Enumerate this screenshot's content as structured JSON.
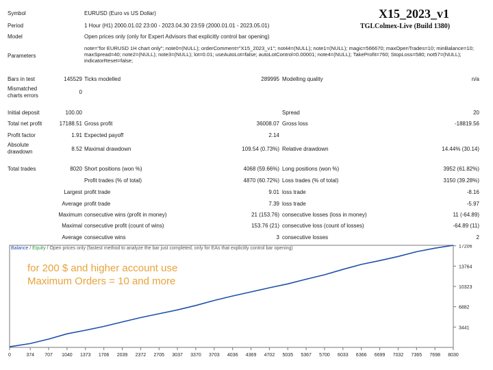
{
  "header": {
    "title": "X15_2023_v1",
    "subtitle": "TGLColmex-Live (Build 1380)"
  },
  "info": {
    "symbol_label": "Symbol",
    "symbol_value": "EURUSD (Euro vs US Dollar)",
    "period_label": "Period",
    "period_value": "1 Hour (H1) 2000.01.02 23:00 - 2023.04.30 23:59 (2000.01.01 - 2023.05.01)",
    "model_label": "Model",
    "model_value": "Open prices only (only for Expert Advisors that explicitly control bar opening)",
    "parameters_label": "Parameters",
    "parameters_value": "note=\"for EURUSD 1H chart only\"; note0=(NULL); orderComment=\"X15_2023_v1\"; not44=(NULL); note1=(NULL); magic=566670; maxOpenTrades=10; minBalance=10; maxSpread=40; note2=(NULL); note3=(NULL); lot=0.01; useAutoLot=false; autoLotControl=0.00001; note4=(NULL); TakeProfit=760; StopLoss=580; not57=(NULL); indicatorReset=false;"
  },
  "stats": {
    "bars_in_test_label": "Bars in test",
    "bars_in_test_value": "145529",
    "ticks_modelled_label": "Ticks modelled",
    "ticks_modelled_value": "289995",
    "modelling_quality_label": "Modelling quality",
    "modelling_quality_value": "n/a",
    "mismatched_label": "Mismatched charts errors",
    "mismatched_value": "0",
    "initial_deposit_label": "Initial deposit",
    "initial_deposit_value": "100.00",
    "spread_label": "Spread",
    "spread_value": "20",
    "total_net_profit_label": "Total net profit",
    "total_net_profit_value": "17188.51",
    "gross_profit_label": "Gross profit",
    "gross_profit_value": "36008.07",
    "gross_loss_label": "Gross loss",
    "gross_loss_value": "-18819.56",
    "profit_factor_label": "Profit factor",
    "profit_factor_value": "1.91",
    "expected_payoff_label": "Expected payoff",
    "expected_payoff_value": "2.14",
    "absolute_drawdown_label": "Absolute drawdown",
    "absolute_drawdown_value": "8.52",
    "maximal_drawdown_label": "Maximal drawdown",
    "maximal_drawdown_value": "109.54 (0.73%)",
    "relative_drawdown_label": "Relative drawdown",
    "relative_drawdown_value": "14.44% (30.14)",
    "total_trades_label": "Total trades",
    "total_trades_value": "8020",
    "short_positions_label": "Short positions (won %)",
    "short_positions_value": "4068 (59.66%)",
    "long_positions_label": "Long positions (won %)",
    "long_positions_value": "3952 (61.82%)",
    "profit_trades_label": "Profit trades (% of total)",
    "profit_trades_value": "4870 (60.72%)",
    "loss_trades_label": "Loss trades (% of total)",
    "loss_trades_value": "3150 (39.28%)",
    "largest_label": "Largest",
    "largest_profit_label": "profit trade",
    "largest_profit_value": "9.01",
    "largest_loss_label": "loss trade",
    "largest_loss_value": "-8.16",
    "average_label": "Average",
    "average_profit_label": "profit trade",
    "average_profit_value": "7.39",
    "average_loss_label": "loss trade",
    "average_loss_value": "-5.97",
    "maximum_label": "Maximum",
    "max_cons_wins_label": "consecutive wins (profit in money)",
    "max_cons_wins_value": "21 (153.76)",
    "max_cons_losses_label": "consecutive losses (loss in money)",
    "max_cons_losses_value": "11 (-64.89)",
    "maximal_label": "Maximal",
    "maximal_cons_profit_label": "consecutive profit (count of wins)",
    "maximal_cons_profit_value": "153.76 (21)",
    "maximal_cons_loss_label": "consecutive loss (count of losses)",
    "maximal_cons_loss_value": "-64.89 (11)",
    "average2_label": "Average",
    "avg_cons_wins_label": "consecutive wins",
    "avg_cons_wins_value": "3",
    "avg_cons_losses_label": "consecutive losses",
    "avg_cons_losses_value": "2"
  },
  "chart": {
    "legend_balance": "Balance",
    "legend_sep": " / ",
    "legend_equity": "Equity",
    "legend_rest": " / Open prices only (fastest method to analyze the bar just completed, only for EAs that explicitly control bar opening)",
    "note_line1": "for 200 $ and higher account use",
    "note_line2": "Maximum Orders = 10 and more",
    "balance_color": "#1f4fa8",
    "note_color": "#e8a33a"
  },
  "chart_data": {
    "type": "line",
    "x_ticks": [
      "0",
      "374",
      "707",
      "1040",
      "1373",
      "1706",
      "2039",
      "2372",
      "2705",
      "3037",
      "3370",
      "3703",
      "4036",
      "4369",
      "4702",
      "5035",
      "5367",
      "5700",
      "6033",
      "6366",
      "6699",
      "7032",
      "7365",
      "7698",
      "8030"
    ],
    "y_ticks": [
      "17206",
      "13764",
      "10323",
      "6882",
      "3441"
    ],
    "xlim": [
      0,
      8030
    ],
    "ylim": [
      0,
      17288
    ],
    "series": [
      {
        "name": "Balance",
        "x": [
          0,
          374,
          707,
          1040,
          1373,
          1706,
          2039,
          2372,
          2705,
          3037,
          3370,
          3703,
          4036,
          4369,
          4702,
          5035,
          5367,
          5700,
          6033,
          6366,
          6699,
          7032,
          7365,
          7698,
          8030
        ],
        "y": [
          100,
          650,
          1400,
          2300,
          2900,
          3550,
          4300,
          5050,
          5700,
          6350,
          7100,
          7950,
          8700,
          9400,
          10100,
          10750,
          11550,
          12300,
          13200,
          14050,
          14700,
          15400,
          16200,
          16800,
          17288
        ]
      }
    ]
  }
}
